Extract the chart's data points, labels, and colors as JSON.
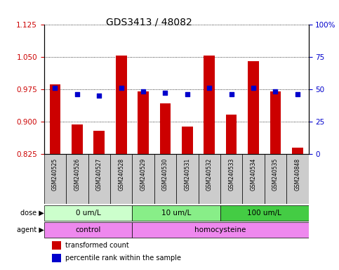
{
  "title": "GDS3413 / 48082",
  "samples": [
    "GSM240525",
    "GSM240526",
    "GSM240527",
    "GSM240528",
    "GSM240529",
    "GSM240530",
    "GSM240531",
    "GSM240532",
    "GSM240533",
    "GSM240534",
    "GSM240535",
    "GSM240848"
  ],
  "transformed_count": [
    0.986,
    0.893,
    0.878,
    1.052,
    0.969,
    0.942,
    0.888,
    1.052,
    0.916,
    1.04,
    0.969,
    0.84
  ],
  "percentile_rank": [
    51,
    46,
    45,
    51,
    48,
    47,
    46,
    51,
    46,
    51,
    48,
    46
  ],
  "bar_color": "#cc0000",
  "dot_color": "#0000cc",
  "left_ylim": [
    0.825,
    1.125
  ],
  "left_yticks": [
    0.825,
    0.9,
    0.975,
    1.05,
    1.125
  ],
  "right_yticks": [
    0,
    25,
    50,
    75,
    100
  ],
  "right_yticklabels": [
    "0",
    "25",
    "50",
    "75",
    "100%"
  ],
  "dose_groups": [
    {
      "label": "0 um/L",
      "start": 0,
      "end": 4,
      "color": "#ccffcc"
    },
    {
      "label": "10 um/L",
      "start": 4,
      "end": 8,
      "color": "#88ee88"
    },
    {
      "label": "100 um/L",
      "start": 8,
      "end": 12,
      "color": "#44cc44"
    }
  ],
  "agent_groups": [
    {
      "label": "control",
      "start": 0,
      "end": 4
    },
    {
      "label": "homocysteine",
      "start": 4,
      "end": 12
    }
  ],
  "agent_color": "#ee88ee",
  "sample_bg_color": "#cccccc",
  "dose_label": "dose",
  "agent_label": "agent",
  "legend_red": "transformed count",
  "legend_blue": "percentile rank within the sample",
  "left_tick_color": "#cc0000",
  "right_tick_color": "#0000cc"
}
